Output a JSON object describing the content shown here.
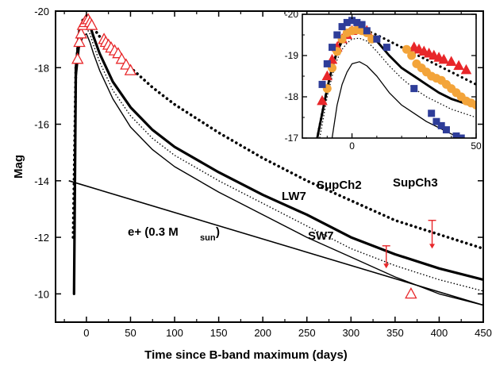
{
  "chart_data": [
    {
      "type": "line",
      "xlabel": "Time since B-band maximum (days)",
      "ylabel": "Mag",
      "xlim": [
        -35,
        450
      ],
      "ylim": [
        -9,
        -20
      ],
      "y_inverted": true,
      "x_ticks": [
        0,
        50,
        100,
        150,
        200,
        250,
        300,
        350,
        400,
        450
      ],
      "y_ticks": [
        -20,
        -18,
        -16,
        -14,
        -12,
        -10
      ],
      "series": [
        {
          "name": "SupCh3",
          "style": "dotted-thick",
          "color": "#000000",
          "x": [
            -15,
            -12,
            -8,
            -4,
            0,
            4,
            8,
            15,
            30,
            50,
            75,
            100,
            150,
            200,
            250,
            300,
            350,
            400,
            450
          ],
          "y": [
            -12.0,
            -18.0,
            -19.3,
            -19.7,
            -19.8,
            -19.7,
            -19.4,
            -19.1,
            -18.6,
            -18.0,
            -17.3,
            -16.7,
            -15.7,
            -14.8,
            -14.0,
            -13.3,
            -12.6,
            -12.1,
            -11.6
          ]
        },
        {
          "name": "SupCh2",
          "style": "solid-thick",
          "color": "#000000",
          "x": [
            -14,
            -12,
            -8,
            -4,
            0,
            4,
            8,
            15,
            30,
            50,
            75,
            100,
            150,
            200,
            250,
            300,
            350,
            400,
            450
          ],
          "y": [
            -10.0,
            -18.0,
            -19.3,
            -19.6,
            -19.7,
            -19.5,
            -19.1,
            -18.5,
            -17.5,
            -16.6,
            -15.8,
            -15.2,
            -14.3,
            -13.5,
            -12.8,
            -12.0,
            -11.4,
            -10.9,
            -10.5
          ]
        },
        {
          "name": "LW7",
          "style": "dotted-thin",
          "color": "#000000",
          "x": [
            -14,
            -12,
            -8,
            -4,
            0,
            4,
            8,
            15,
            30,
            50,
            75,
            100,
            150,
            200,
            250,
            300,
            350,
            400,
            450
          ],
          "y": [
            -10.0,
            -18.0,
            -19.1,
            -19.4,
            -19.4,
            -19.2,
            -18.8,
            -18.2,
            -17.2,
            -16.3,
            -15.5,
            -14.9,
            -14.0,
            -13.2,
            -12.4,
            -11.6,
            -11.0,
            -10.5,
            -10.1
          ]
        },
        {
          "name": "SW7",
          "style": "solid-thin",
          "color": "#000000",
          "x": [
            -14,
            -12,
            -8,
            -4,
            0,
            4,
            8,
            15,
            30,
            50,
            75,
            100,
            150,
            200,
            250,
            300,
            350,
            400,
            450
          ],
          "y": [
            -10.0,
            -17.5,
            -18.7,
            -19.1,
            -19.2,
            -18.9,
            -18.5,
            -17.9,
            -16.9,
            -15.9,
            -15.1,
            -14.5,
            -13.6,
            -12.8,
            -12.0,
            -11.3,
            -10.6,
            -10.0,
            -9.6
          ]
        },
        {
          "name": "e+ (0.3 M",
          "style": "solid-straight",
          "color": "#000000",
          "x": [
            -20,
            450
          ],
          "y": [
            -14.0,
            -9.6
          ]
        }
      ],
      "observations": {
        "marker": "open-triangle",
        "color": "#e8272a",
        "x": [
          -10,
          -8,
          -6,
          -4,
          -2,
          0,
          2,
          4,
          6,
          20,
          22,
          25,
          28,
          32,
          36,
          40,
          45,
          50,
          368
        ],
        "y": [
          -18.3,
          -18.9,
          -19.2,
          -19.5,
          -19.6,
          -19.7,
          -19.7,
          -19.6,
          -19.5,
          -19.0,
          -18.9,
          -18.8,
          -18.7,
          -18.6,
          -18.5,
          -18.3,
          -18.1,
          -17.9,
          -10.0
        ]
      },
      "upper_limits": {
        "color": "#e8272a",
        "points": [
          {
            "x": 340,
            "y_top": -11.7,
            "y_bottom": -10.9
          },
          {
            "x": 392,
            "y_top": -12.6,
            "y_bottom": -11.6
          }
        ]
      },
      "annotations": [
        "SupCh2",
        "SupCh3",
        "LW7",
        "SW7",
        "e+ (0.3 M",
        "sun",
        ")"
      ]
    },
    {
      "type": "scatter",
      "role": "inset",
      "xlim": [
        -20,
        50
      ],
      "ylim": [
        -17,
        -20
      ],
      "y_inverted": true,
      "x_ticks": [
        0,
        50
      ],
      "y_ticks": [
        -20,
        -19,
        -18,
        -17
      ],
      "series": [
        {
          "name": "SupCh3",
          "style": "dotted-thick",
          "color": "#000000",
          "x": [
            -14,
            -12,
            -10,
            -8,
            -6,
            -4,
            -2,
            0,
            3,
            6,
            10,
            15,
            20,
            25,
            30,
            35,
            40,
            45,
            50
          ],
          "y": [
            -17.0,
            -17.6,
            -18.2,
            -18.7,
            -19.1,
            -19.4,
            -19.55,
            -19.62,
            -19.65,
            -19.6,
            -19.5,
            -19.35,
            -19.2,
            -19.05,
            -18.9,
            -18.75,
            -18.6,
            -18.45,
            -18.3
          ]
        },
        {
          "name": "SupCh2",
          "style": "solid-thick",
          "color": "#000000",
          "x": [
            -14,
            -12,
            -10,
            -8,
            -6,
            -4,
            -2,
            0,
            3,
            6,
            10,
            15,
            20,
            25,
            30,
            35,
            40,
            45,
            50
          ],
          "y": [
            -17.0,
            -17.6,
            -18.2,
            -18.7,
            -19.1,
            -19.35,
            -19.5,
            -19.57,
            -19.6,
            -19.55,
            -19.35,
            -19.0,
            -18.7,
            -18.5,
            -18.3,
            -18.1,
            -17.95,
            -17.85,
            -17.75
          ]
        },
        {
          "name": "LW7",
          "style": "dotted-thin",
          "color": "#000000",
          "x": [
            -13,
            -10,
            -8,
            -6,
            -4,
            -2,
            0,
            3,
            6,
            10,
            15,
            20,
            25,
            30,
            35,
            40,
            45,
            50
          ],
          "y": [
            -17.0,
            -18.0,
            -18.5,
            -18.9,
            -19.15,
            -19.3,
            -19.4,
            -19.42,
            -19.35,
            -19.1,
            -18.75,
            -18.45,
            -18.2,
            -18.0,
            -17.85,
            -17.7,
            -17.6,
            -17.5
          ]
        },
        {
          "name": "SW7",
          "style": "solid-thin",
          "color": "#000000",
          "x": [
            -8,
            -6,
            -4,
            -2,
            0,
            3,
            6,
            10,
            15,
            20,
            25,
            30,
            35,
            40,
            44
          ],
          "y": [
            -17.0,
            -17.8,
            -18.3,
            -18.6,
            -18.8,
            -18.85,
            -18.75,
            -18.5,
            -18.1,
            -17.8,
            -17.6,
            -17.4,
            -17.25,
            -17.1,
            -17.0
          ]
        }
      ],
      "observations": [
        {
          "marker": "filled-triangle",
          "color": "#e8272a",
          "x": [
            -12,
            -10,
            -8,
            -6,
            -4,
            -2,
            0,
            2,
            4,
            6,
            25,
            27,
            29,
            31,
            33,
            35,
            37,
            40,
            43,
            46
          ],
          "y": [
            -17.9,
            -18.5,
            -18.9,
            -19.2,
            -19.4,
            -19.5,
            -19.6,
            -19.65,
            -19.7,
            -19.6,
            -19.2,
            -19.15,
            -19.1,
            -19.05,
            -19.0,
            -18.95,
            -18.9,
            -18.85,
            -18.75,
            -18.65
          ]
        },
        {
          "marker": "filled-circle",
          "color": "#f3a43a",
          "x": [
            -10,
            -8,
            -6,
            -4,
            -2,
            0,
            2,
            4,
            6,
            8,
            22,
            24,
            26,
            28,
            30,
            32,
            34,
            36,
            38,
            40,
            42,
            44,
            46,
            48,
            50
          ],
          "y": [
            -18.2,
            -18.7,
            -19.1,
            -19.4,
            -19.55,
            -19.6,
            -19.62,
            -19.6,
            -19.55,
            -19.4,
            -19.15,
            -19.0,
            -18.8,
            -18.7,
            -18.6,
            -18.5,
            -18.45,
            -18.4,
            -18.3,
            -18.2,
            -18.1,
            -18.0,
            -17.9,
            -17.85,
            -17.8
          ]
        },
        {
          "marker": "filled-square",
          "color": "#2e3d99",
          "x": [
            -12,
            -10,
            -8,
            -6,
            -4,
            -2,
            0,
            2,
            4,
            6,
            10,
            14,
            25,
            32,
            34,
            36,
            38,
            42,
            44
          ],
          "y": [
            -18.3,
            -18.8,
            -19.2,
            -19.5,
            -19.7,
            -19.8,
            -19.85,
            -19.8,
            -19.75,
            -19.6,
            -19.4,
            -19.2,
            -18.2,
            -17.6,
            -17.4,
            -17.3,
            -17.2,
            -17.05,
            -17.0
          ]
        }
      ]
    }
  ]
}
